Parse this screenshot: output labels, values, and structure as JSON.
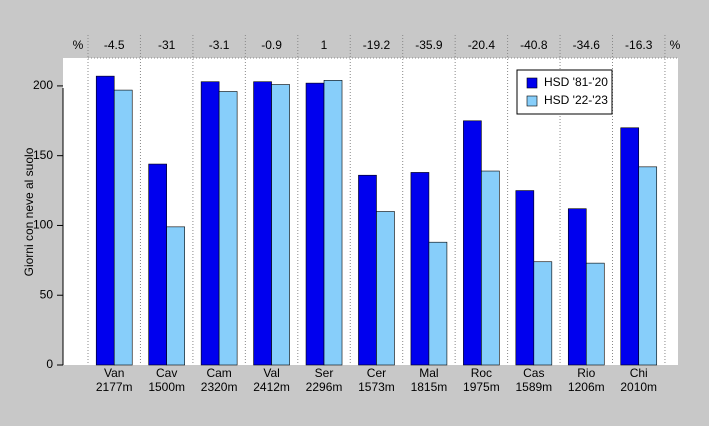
{
  "chart_data": {
    "type": "bar",
    "y_label": "Giorni con neve al suolo",
    "categories": [
      "Van",
      "Cav",
      "Cam",
      "Val",
      "Ser",
      "Cer",
      "Mal",
      "Roc",
      "Cas",
      "Rio",
      "Chi"
    ],
    "category_sublabels": [
      "2177m",
      "1500m",
      "2320m",
      "2412m",
      "2296m",
      "1573m",
      "1815m",
      "1975m",
      "1589m",
      "1206m",
      "2010m"
    ],
    "series": [
      {
        "name": "HSD '81-'20",
        "color": "#0000ee",
        "values": [
          207,
          144,
          203,
          203,
          202,
          136,
          138,
          175,
          125,
          112,
          170
        ]
      },
      {
        "name": "HSD '22-'23",
        "color": "#87cefa",
        "values": [
          197,
          99,
          196,
          201,
          204,
          110,
          88,
          139,
          74,
          73,
          142
        ]
      }
    ],
    "changes": [
      -4.5,
      -31,
      -3.1,
      -0.9,
      1,
      -19.2,
      -35.9,
      -20.4,
      -40.8,
      -34.6,
      -16.3
    ],
    "change_unit": "%",
    "positive_color": "#0000ee",
    "negative_color": "#d9534f",
    "ylim": [
      0,
      220
    ],
    "yticks": [
      0,
      50,
      100,
      150,
      200
    ],
    "legend": "top-right"
  }
}
